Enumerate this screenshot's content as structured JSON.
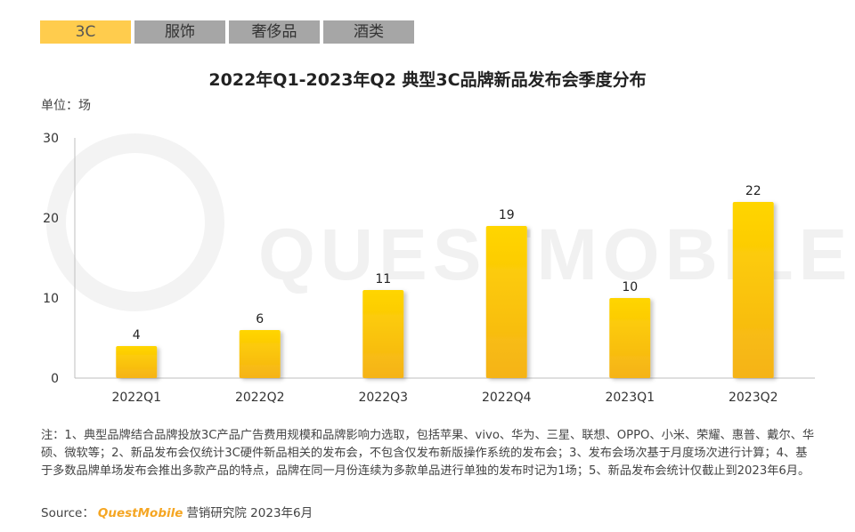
{
  "tabs": [
    {
      "label": "3C",
      "active": true
    },
    {
      "label": "服饰",
      "active": false
    },
    {
      "label": "奢侈品",
      "active": false
    },
    {
      "label": "酒类",
      "active": false
    }
  ],
  "watermark": "QUESTMOBILE",
  "unit": "单位：场",
  "chart_data": {
    "type": "bar",
    "title": "2022年Q1-2023年Q2 典型3C品牌新品发布会季度分布",
    "categories": [
      "2022Q1",
      "2022Q2",
      "2022Q3",
      "2022Q4",
      "2023Q1",
      "2023Q2"
    ],
    "values": [
      4,
      6,
      11,
      19,
      10,
      22
    ],
    "ylim": [
      0,
      30
    ],
    "yticks": [
      0,
      10,
      20,
      30
    ],
    "grid": false,
    "bar_color_top": "#ffd500",
    "bar_color_bottom": "#f5b318"
  },
  "note": "注：1、典型品牌结合品牌投放3C产品广告费用规模和品牌影响力选取，包括苹果、vivo、华为、三星、联想、OPPO、小米、荣耀、惠普、戴尔、华硕、微软等；2、新品发布会仅统计3C硬件新品相关的发布会，不包含仅发布新版操作系统的发布会；3、发布会场次基于月度场次进行计算；4、基于多数品牌单场发布会推出多款产品的特点，品牌在同一月份连续为多款单品进行单独的发布时记为1场；5、新品发布会统计仅截止到2023年6月。",
  "source": {
    "prefix": "Source：",
    "brand": "QuestMobile",
    "suffix": "营销研究院 2023年6月"
  }
}
